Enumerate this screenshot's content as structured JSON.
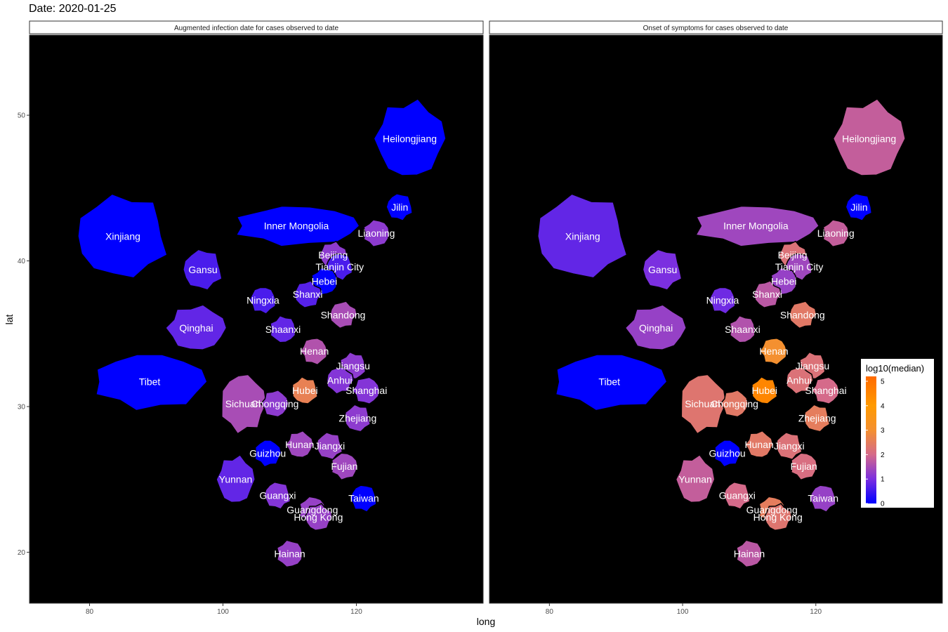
{
  "page": {
    "title": "Date: 2020-01-25"
  },
  "axes": {
    "x_label": "long",
    "y_label": "lat",
    "x_ticks": [
      80,
      100,
      120
    ],
    "y_ticks": [
      20,
      30,
      40,
      50
    ],
    "xlim": [
      71,
      139
    ],
    "ylim": [
      16.5,
      55.5
    ]
  },
  "colors": {
    "panel_background": "#000000",
    "strip_background": "#ffffff",
    "border": "#000000",
    "label": "#ffffff"
  },
  "legend": {
    "title": "log10(median)",
    "ticks": [
      0,
      1,
      2,
      3,
      4,
      5
    ],
    "range": [
      0,
      5.2
    ],
    "stops": [
      {
        "value": 0,
        "color": "#0000ff"
      },
      {
        "value": 1,
        "color": "#7b2fe0"
      },
      {
        "value": 2,
        "color": "#d56a8a"
      },
      {
        "value": 3,
        "color": "#f49030"
      },
      {
        "value": 4,
        "color": "#ff9a00"
      },
      {
        "value": 5.2,
        "color": "#ff6a00"
      }
    ]
  },
  "chart_data": {
    "type": "choropleth",
    "fill_variable": "log10(median)",
    "panels": [
      {
        "strip": "Augmented infection date for cases observed to date",
        "regions": [
          {
            "name": "Xinjiang",
            "lon": 85.0,
            "lat": 41.7,
            "value": 0
          },
          {
            "name": "Tibet",
            "lon": 89.0,
            "lat": 31.7,
            "value": 0
          },
          {
            "name": "Qinghai",
            "lon": 96.0,
            "lat": 35.4,
            "value": 0.8
          },
          {
            "name": "Gansu",
            "lon": 97.0,
            "lat": 39.4,
            "value": 0.6
          },
          {
            "name": "Inner Mongolia",
            "lon": 111.0,
            "lat": 42.4,
            "value": 0
          },
          {
            "name": "Heilongjiang",
            "lon": 128.0,
            "lat": 48.4,
            "value": 0
          },
          {
            "name": "Jilin",
            "lon": 126.5,
            "lat": 43.7,
            "value": 0
          },
          {
            "name": "Liaoning",
            "lon": 123.0,
            "lat": 41.9,
            "value": 1.2
          },
          {
            "name": "Beijing",
            "lon": 116.5,
            "lat": 40.4,
            "value": 1.2
          },
          {
            "name": "Tianjin City",
            "lon": 117.5,
            "lat": 39.6,
            "value": 0.6
          },
          {
            "name": "Hebei",
            "lon": 115.2,
            "lat": 38.6,
            "value": 0
          },
          {
            "name": "Shanxi",
            "lon": 112.7,
            "lat": 37.7,
            "value": 0.7
          },
          {
            "name": "Ningxia",
            "lon": 106.0,
            "lat": 37.3,
            "value": 0.6
          },
          {
            "name": "Shaanxi",
            "lon": 109.0,
            "lat": 35.3,
            "value": 0.8
          },
          {
            "name": "Shandong",
            "lon": 118.0,
            "lat": 36.3,
            "value": 1.5
          },
          {
            "name": "Henan",
            "lon": 113.7,
            "lat": 33.8,
            "value": 1.6
          },
          {
            "name": "Jiangsu",
            "lon": 119.5,
            "lat": 32.8,
            "value": 1.2
          },
          {
            "name": "Anhui",
            "lon": 117.5,
            "lat": 31.8,
            "value": 1.1
          },
          {
            "name": "Shanghai",
            "lon": 121.5,
            "lat": 31.1,
            "value": 1.1
          },
          {
            "name": "Hubei",
            "lon": 112.3,
            "lat": 31.1,
            "value": 2.6
          },
          {
            "name": "Sichuan",
            "lon": 103.0,
            "lat": 30.2,
            "value": 1.5
          },
          {
            "name": "Chongqing",
            "lon": 107.8,
            "lat": 30.2,
            "value": 1.2
          },
          {
            "name": "Zhejiang",
            "lon": 120.2,
            "lat": 29.2,
            "value": 1.2
          },
          {
            "name": "Guizhou",
            "lon": 106.7,
            "lat": 26.8,
            "value": 0
          },
          {
            "name": "Hunan",
            "lon": 111.5,
            "lat": 27.4,
            "value": 1.4
          },
          {
            "name": "Jiangxi",
            "lon": 116.0,
            "lat": 27.3,
            "value": 1.3
          },
          {
            "name": "Fujian",
            "lon": 118.2,
            "lat": 25.9,
            "value": 1.4
          },
          {
            "name": "Yunnan",
            "lon": 101.9,
            "lat": 25.0,
            "value": 0.8
          },
          {
            "name": "Guangxi",
            "lon": 108.2,
            "lat": 23.9,
            "value": 1.1
          },
          {
            "name": "Guangdong",
            "lon": 113.4,
            "lat": 22.9,
            "value": 1.3
          },
          {
            "name": "Hong Kong",
            "lon": 114.3,
            "lat": 22.4,
            "value": 1.3
          },
          {
            "name": "Taiwan",
            "lon": 121.1,
            "lat": 23.7,
            "value": 0
          },
          {
            "name": "Hainan",
            "lon": 110.0,
            "lat": 19.9,
            "value": 1.3
          }
        ]
      },
      {
        "strip": "Onset of symptoms for cases observed to date",
        "regions": [
          {
            "name": "Xinjiang",
            "lon": 85.0,
            "lat": 41.7,
            "value": 0.8
          },
          {
            "name": "Tibet",
            "lon": 89.0,
            "lat": 31.7,
            "value": 0
          },
          {
            "name": "Qinghai",
            "lon": 96.0,
            "lat": 35.4,
            "value": 1.3
          },
          {
            "name": "Gansu",
            "lon": 97.0,
            "lat": 39.4,
            "value": 1.0
          },
          {
            "name": "Inner Mongolia",
            "lon": 111.0,
            "lat": 42.4,
            "value": 1.4
          },
          {
            "name": "Heilongjiang",
            "lon": 128.0,
            "lat": 48.4,
            "value": 1.8
          },
          {
            "name": "Jilin",
            "lon": 126.5,
            "lat": 43.7,
            "value": 0
          },
          {
            "name": "Liaoning",
            "lon": 123.0,
            "lat": 41.9,
            "value": 1.8
          },
          {
            "name": "Beijing",
            "lon": 116.5,
            "lat": 40.4,
            "value": 2.2
          },
          {
            "name": "Tianjin City",
            "lon": 117.5,
            "lat": 39.6,
            "value": 1.4
          },
          {
            "name": "Hebei",
            "lon": 115.2,
            "lat": 38.6,
            "value": 1.3
          },
          {
            "name": "Shanxi",
            "lon": 112.7,
            "lat": 37.7,
            "value": 1.7
          },
          {
            "name": "Ningxia",
            "lon": 106.0,
            "lat": 37.3,
            "value": 0.9
          },
          {
            "name": "Shaanxi",
            "lon": 109.0,
            "lat": 35.3,
            "value": 1.6
          },
          {
            "name": "Shandong",
            "lon": 118.0,
            "lat": 36.3,
            "value": 2.4
          },
          {
            "name": "Henan",
            "lon": 113.7,
            "lat": 33.8,
            "value": 3.0
          },
          {
            "name": "Jiangsu",
            "lon": 119.5,
            "lat": 32.8,
            "value": 2.2
          },
          {
            "name": "Anhui",
            "lon": 117.5,
            "lat": 31.8,
            "value": 2.2
          },
          {
            "name": "Shanghai",
            "lon": 121.5,
            "lat": 31.1,
            "value": 2.0
          },
          {
            "name": "Hubei",
            "lon": 112.3,
            "lat": 31.1,
            "value": 4.5
          },
          {
            "name": "Sichuan",
            "lon": 103.0,
            "lat": 30.2,
            "value": 2.3
          },
          {
            "name": "Chongqing",
            "lon": 107.8,
            "lat": 30.2,
            "value": 2.4
          },
          {
            "name": "Zhejiang",
            "lon": 120.2,
            "lat": 29.2,
            "value": 2.5
          },
          {
            "name": "Guizhou",
            "lon": 106.7,
            "lat": 26.8,
            "value": 0
          },
          {
            "name": "Hunan",
            "lon": 111.5,
            "lat": 27.4,
            "value": 2.4
          },
          {
            "name": "Jiangxi",
            "lon": 116.0,
            "lat": 27.3,
            "value": 2.2
          },
          {
            "name": "Fujian",
            "lon": 118.2,
            "lat": 25.9,
            "value": 2.1
          },
          {
            "name": "Yunnan",
            "lon": 101.9,
            "lat": 25.0,
            "value": 1.8
          },
          {
            "name": "Guangxi",
            "lon": 108.2,
            "lat": 23.9,
            "value": 2.0
          },
          {
            "name": "Guangdong",
            "lon": 113.4,
            "lat": 22.9,
            "value": 2.5
          },
          {
            "name": "Hong Kong",
            "lon": 114.3,
            "lat": 22.4,
            "value": 2.3
          },
          {
            "name": "Taiwan",
            "lon": 121.1,
            "lat": 23.7,
            "value": 1.3
          },
          {
            "name": "Hainan",
            "lon": 110.0,
            "lat": 19.9,
            "value": 1.7
          }
        ]
      }
    ]
  }
}
